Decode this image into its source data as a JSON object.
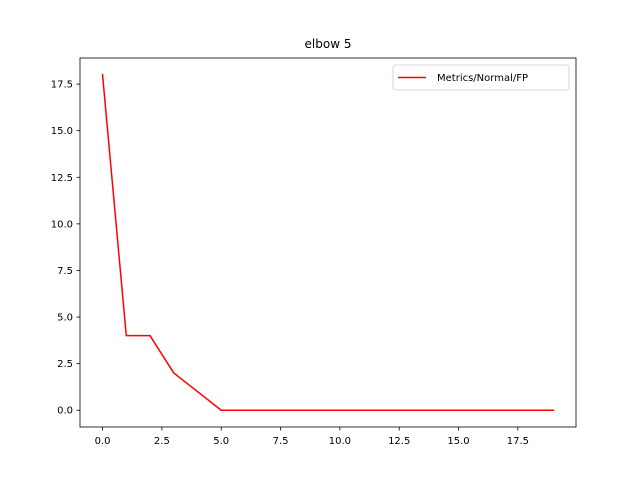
{
  "chart_data": {
    "type": "line",
    "title": "elbow 5",
    "xlabel": "",
    "ylabel": "",
    "xlim": [
      -0.95,
      19.95
    ],
    "ylim": [
      -0.9,
      18.9
    ],
    "x_ticks": [
      0.0,
      2.5,
      5.0,
      7.5,
      10.0,
      12.5,
      15.0,
      17.5
    ],
    "x_tick_labels": [
      "0.0",
      "2.5",
      "5.0",
      "7.5",
      "10.0",
      "12.5",
      "15.0",
      "17.5"
    ],
    "y_ticks": [
      0.0,
      2.5,
      5.0,
      7.5,
      10.0,
      12.5,
      15.0,
      17.5
    ],
    "y_tick_labels": [
      "0.0",
      "2.5",
      "5.0",
      "7.5",
      "10.0",
      "12.5",
      "15.0",
      "17.5"
    ],
    "grid": false,
    "legend_position": "top-right",
    "series": [
      {
        "name": "Metrics/Normal/FP",
        "color": "#ff0000",
        "x": [
          0,
          1,
          2,
          3,
          4,
          5,
          6,
          7,
          8,
          9,
          10,
          11,
          12,
          13,
          14,
          15,
          16,
          17,
          18,
          19
        ],
        "y": [
          18,
          4,
          4,
          2,
          1,
          0,
          0,
          0,
          0,
          0,
          0,
          0,
          0,
          0,
          0,
          0,
          0,
          0,
          0,
          0
        ]
      }
    ]
  }
}
